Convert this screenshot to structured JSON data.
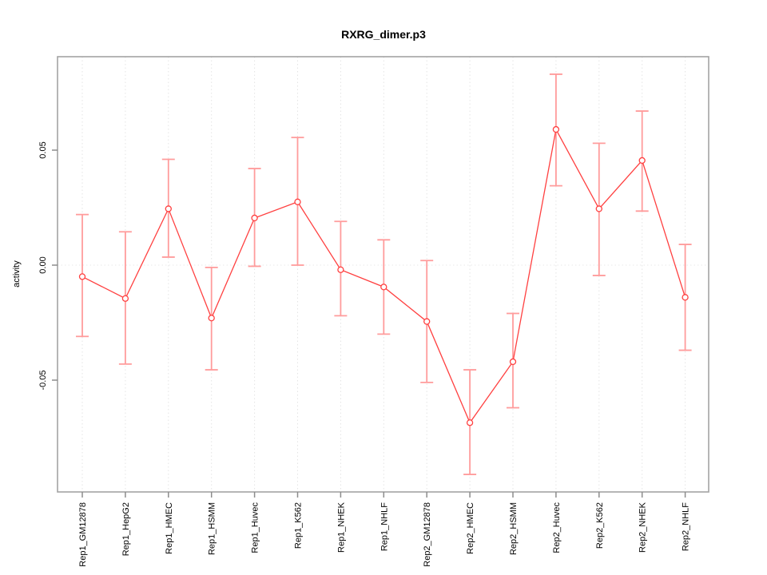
{
  "window": {
    "background": "#ffffff"
  },
  "chart_data": {
    "type": "line",
    "title": "RXRG_dimer.p3",
    "xlabel": "",
    "ylabel": "activity",
    "legend": "none",
    "grid": "vertical-dotted-gridlines-and-dotted-zero-line",
    "point_style": "open-circle-with-error-bars",
    "categories": [
      "Rep1_GM12878",
      "Rep1_HepG2",
      "Rep1_HMEC",
      "Rep1_HSMM",
      "Rep1_Huvec",
      "Rep1_K562",
      "Rep1_NHEK",
      "Rep1_NHLF",
      "Rep2_GM12878",
      "Rep2_HMEC",
      "Rep2_HSMM",
      "Rep2_Huvec",
      "Rep2_K562",
      "Rep2_NHEK",
      "Rep2_NHLF"
    ],
    "series": [
      {
        "name": "activity",
        "values": [
          -0.005,
          -0.0145,
          0.0245,
          -0.023,
          0.0205,
          0.0275,
          -0.002,
          -0.0095,
          -0.0245,
          -0.0685,
          -0.042,
          0.059,
          0.0245,
          0.0455,
          -0.014
        ],
        "error_low": [
          -0.031,
          -0.043,
          0.0035,
          -0.0455,
          -0.0005,
          0.0,
          -0.022,
          -0.03,
          -0.051,
          -0.091,
          -0.062,
          0.0345,
          -0.0045,
          0.0235,
          -0.037
        ],
        "error_high": [
          0.022,
          0.0145,
          0.046,
          -0.001,
          0.042,
          0.0555,
          0.019,
          0.011,
          0.002,
          -0.0455,
          -0.021,
          0.083,
          0.053,
          0.067,
          0.009
        ]
      }
    ],
    "yticks": [
      -0.05,
      0.0,
      0.05
    ],
    "ytick_labels": [
      "-0.05",
      "0.00",
      "0.05"
    ],
    "ylim": [
      -0.099,
      0.091
    ],
    "zero_line": 0.0,
    "colors": {
      "line": "#ff4040",
      "point_stroke": "#ff4040",
      "point_fill": "#ffffff",
      "error_bar": "#ff9c9c",
      "box": "#a3a3a3",
      "tick": "#8c8c8c",
      "grid": "#e4e4e4",
      "zero_line_color": "#e9e9e9",
      "text": "#000000"
    }
  }
}
